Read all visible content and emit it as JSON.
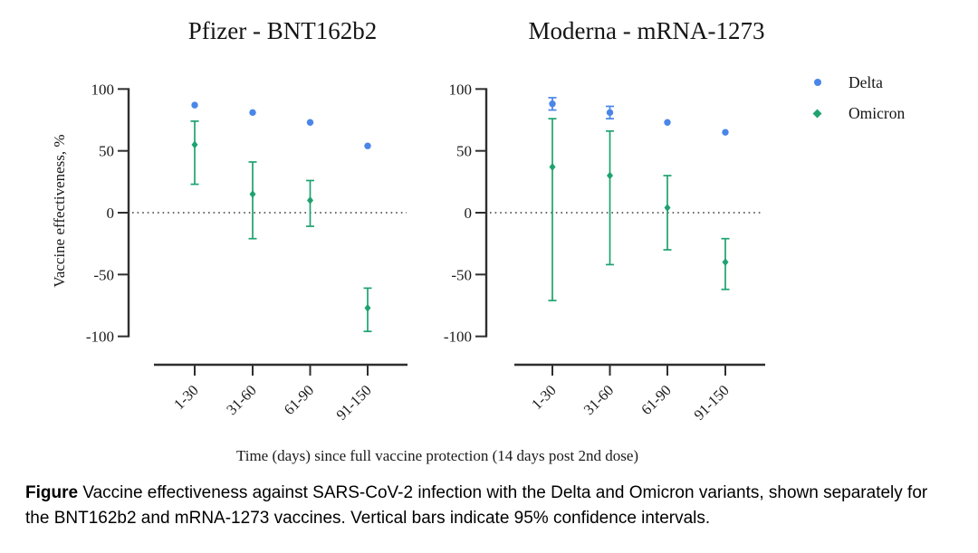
{
  "figure": {
    "ylabel": "Vaccine effectiveness, %",
    "xlabel": "Time (days) since full vaccine protection (14 days post 2nd dose)",
    "caption_label": "Figure",
    "caption_text": " Vaccine effectiveness against SARS-CoV-2 infection with the Delta and Omicron variants, shown separately for the BNT162b2 and mRNA-1273 vaccines. Vertical bars indicate 95% confidence intervals."
  },
  "colors": {
    "delta": "#4a86e8",
    "omicron": "#1ea36f",
    "axis": "#2e2e2e",
    "zero_line": "#3c3c3c",
    "text": "#1a1a1a"
  },
  "legend": {
    "position": "top-right",
    "items": [
      {
        "label": "Delta",
        "color": "#4a86e8",
        "marker": "circle"
      },
      {
        "label": "Omicron",
        "color": "#1ea36f",
        "marker": "diamond"
      }
    ]
  },
  "chart_data": [
    {
      "type": "scatter",
      "title": "Pfizer - BNT162b2",
      "categories": [
        "1-30",
        "31-60",
        "61-90",
        "91-150"
      ],
      "xlabel": "Time (days) since full vaccine protection (14 days post 2nd dose)",
      "ylabel": "Vaccine effectiveness, %",
      "ylim": [
        -100,
        100
      ],
      "yticks": [
        100,
        50,
        0,
        -50,
        -100
      ],
      "grid": false,
      "zero_reference_line": true,
      "error_bars": "95% confidence intervals",
      "series": [
        {
          "name": "Delta",
          "color": "#4a86e8",
          "marker": "circle",
          "values": [
            87,
            81,
            73,
            54
          ],
          "ci_low": [
            null,
            null,
            null,
            null
          ],
          "ci_high": [
            null,
            null,
            null,
            null
          ]
        },
        {
          "name": "Omicron",
          "color": "#1ea36f",
          "marker": "diamond",
          "values": [
            55,
            15,
            10,
            -77
          ],
          "ci_low": [
            23,
            -21,
            -11,
            -96
          ],
          "ci_high": [
            74,
            41,
            26,
            -61
          ]
        }
      ]
    },
    {
      "type": "scatter",
      "title": "Moderna - mRNA-1273",
      "categories": [
        "1-30",
        "31-60",
        "61-90",
        "91-150"
      ],
      "xlabel": "Time (days) since full vaccine protection (14 days post 2nd dose)",
      "ylabel": "Vaccine effectiveness, %",
      "ylim": [
        -100,
        100
      ],
      "yticks": [
        100,
        50,
        0,
        -50,
        -100
      ],
      "grid": false,
      "zero_reference_line": true,
      "error_bars": "95% confidence intervals",
      "series": [
        {
          "name": "Delta",
          "color": "#4a86e8",
          "marker": "circle",
          "values": [
            88,
            81,
            73,
            65
          ],
          "ci_low": [
            83,
            76,
            null,
            null
          ],
          "ci_high": [
            93,
            86,
            null,
            null
          ]
        },
        {
          "name": "Omicron",
          "color": "#1ea36f",
          "marker": "diamond",
          "values": [
            37,
            30,
            4,
            -40
          ],
          "ci_low": [
            -71,
            -42,
            -30,
            -62
          ],
          "ci_high": [
            76,
            66,
            30,
            -21
          ]
        }
      ]
    }
  ]
}
